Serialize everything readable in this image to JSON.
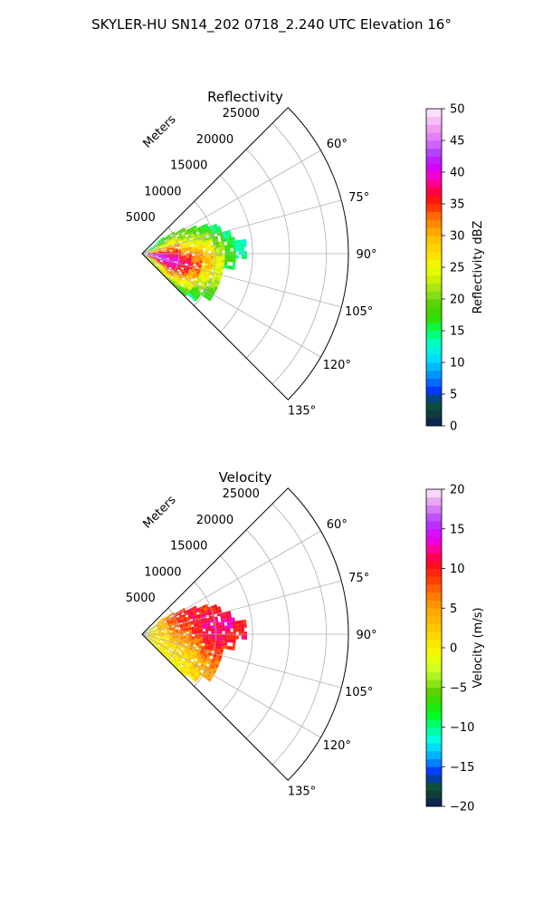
{
  "figure": {
    "title": "SKYLER-HU  SN14_202  0718_2.240 UTC Elevation 16°"
  },
  "chart_data": [
    {
      "type": "heatmap",
      "subtype": "polar-sector",
      "title": "Reflectivity",
      "radial_label": "Meters",
      "azimuth_range_deg": [
        45,
        135
      ],
      "range_max_m": 28000,
      "radial_ticks": [
        "5000",
        "10000",
        "15000",
        "20000",
        "25000"
      ],
      "radial_tick_values": [
        5000,
        10000,
        15000,
        20000,
        25000
      ],
      "angle_ticks": [
        "60°",
        "75°",
        "90°",
        "105°",
        "120°",
        "135°"
      ],
      "angle_tick_values": [
        60,
        75,
        90,
        105,
        120,
        135
      ],
      "grid": true,
      "colorbar": {
        "label": "Reflectivity dBZ",
        "min": 0,
        "max": 50,
        "ticks": [
          "0",
          "5",
          "10",
          "15",
          "20",
          "25",
          "30",
          "35",
          "40",
          "45",
          "50"
        ],
        "tick_values": [
          0,
          5,
          10,
          15,
          20,
          25,
          30,
          35,
          40,
          45,
          50
        ],
        "stops": [
          {
            "v": 0,
            "c": "#0a1a5c"
          },
          {
            "v": 2,
            "c": "#0f3d3a"
          },
          {
            "v": 4,
            "c": "#0a5a40"
          },
          {
            "v": 5,
            "c": "#0020ff"
          },
          {
            "v": 7,
            "c": "#0070ff"
          },
          {
            "v": 9,
            "c": "#00b0ff"
          },
          {
            "v": 11,
            "c": "#00e8ff"
          },
          {
            "v": 13,
            "c": "#00ffc0"
          },
          {
            "v": 15,
            "c": "#00ff60"
          },
          {
            "v": 17,
            "c": "#30e000"
          },
          {
            "v": 19,
            "c": "#50d000"
          },
          {
            "v": 21,
            "c": "#90e020"
          },
          {
            "v": 23,
            "c": "#c8f000"
          },
          {
            "v": 25,
            "c": "#f0ff00"
          },
          {
            "v": 27,
            "c": "#ffe000"
          },
          {
            "v": 29,
            "c": "#ffc800"
          },
          {
            "v": 31,
            "c": "#ffa000"
          },
          {
            "v": 33,
            "c": "#ff7000"
          },
          {
            "v": 35,
            "c": "#ff2000"
          },
          {
            "v": 37,
            "c": "#ff0040"
          },
          {
            "v": 39,
            "c": "#ff00c0"
          },
          {
            "v": 41,
            "c": "#d000ff"
          },
          {
            "v": 43,
            "c": "#b040ff"
          },
          {
            "v": 45,
            "c": "#e070ff"
          },
          {
            "v": 47,
            "c": "#f0a0f0"
          },
          {
            "v": 50,
            "c": "#fff0ff"
          }
        ]
      },
      "echo_field": {
        "rows": [
          {
            "r_m": 1500,
            "az_deg": [
              55,
              140
            ],
            "values": [
              12,
              18,
              28,
              40,
              45,
              30,
              22,
              18
            ]
          },
          {
            "r_m": 3000,
            "az_deg": [
              52,
              140
            ],
            "values": [
              14,
              20,
              30,
              38,
              42,
              36,
              24,
              17
            ]
          },
          {
            "r_m": 4500,
            "az_deg": [
              55,
              138
            ],
            "values": [
              16,
              24,
              32,
              36,
              40,
              38,
              30,
              18
            ]
          },
          {
            "r_m": 6000,
            "az_deg": [
              58,
              138
            ],
            "values": [
              18,
              22,
              28,
              34,
              38,
              34,
              26,
              16
            ]
          },
          {
            "r_m": 7500,
            "az_deg": [
              62,
              136
            ],
            "values": [
              17,
              22,
              27,
              32,
              34,
              30,
              24,
              15
            ]
          },
          {
            "r_m": 9000,
            "az_deg": [
              65,
              132
            ],
            "values": [
              16,
              20,
              26,
              30,
              28,
              24,
              20,
              14
            ]
          },
          {
            "r_m": 10500,
            "az_deg": [
              68,
              125
            ],
            "values": [
              14,
              18,
              22,
              24,
              24,
              20,
              16
            ]
          },
          {
            "r_m": 12000,
            "az_deg": [
              75,
              100
            ],
            "values": [
              14,
              16,
              18,
              15
            ]
          },
          {
            "r_m": 13500,
            "az_deg": [
              82,
              93
            ],
            "values": [
              13,
              14
            ]
          }
        ]
      }
    },
    {
      "type": "heatmap",
      "subtype": "polar-sector",
      "title": "Velocity",
      "radial_label": "Meters",
      "azimuth_range_deg": [
        45,
        135
      ],
      "range_max_m": 28000,
      "radial_ticks": [
        "5000",
        "10000",
        "15000",
        "20000",
        "25000"
      ],
      "radial_tick_values": [
        5000,
        10000,
        15000,
        20000,
        25000
      ],
      "angle_ticks": [
        "60°",
        "75°",
        "90°",
        "105°",
        "120°",
        "135°"
      ],
      "angle_tick_values": [
        60,
        75,
        90,
        105,
        120,
        135
      ],
      "grid": true,
      "colorbar": {
        "label": "Velocity (m/s)",
        "min": -20,
        "max": 20,
        "ticks": [
          "−20",
          "−15",
          "−10",
          "−5",
          "0",
          "5",
          "10",
          "15",
          "20"
        ],
        "tick_values": [
          -20,
          -15,
          -10,
          -5,
          0,
          5,
          10,
          15,
          20
        ],
        "stops": [
          {
            "v": -20,
            "c": "#0a1a5c"
          },
          {
            "v": -18.5,
            "c": "#0f3d3a"
          },
          {
            "v": -17,
            "c": "#0a5a40"
          },
          {
            "v": -16,
            "c": "#0020ff"
          },
          {
            "v": -14.5,
            "c": "#0080ff"
          },
          {
            "v": -13,
            "c": "#00d0ff"
          },
          {
            "v": -11.5,
            "c": "#00ffe0"
          },
          {
            "v": -10,
            "c": "#00ff80"
          },
          {
            "v": -8.5,
            "c": "#00ff20"
          },
          {
            "v": -7,
            "c": "#30e000"
          },
          {
            "v": -5.5,
            "c": "#60d000"
          },
          {
            "v": -4,
            "c": "#a0f020"
          },
          {
            "v": -2.5,
            "c": "#d0ff20"
          },
          {
            "v": -1,
            "c": "#f0ff00"
          },
          {
            "v": 1,
            "c": "#ffe000"
          },
          {
            "v": 3,
            "c": "#ffc000"
          },
          {
            "v": 5,
            "c": "#ffa000"
          },
          {
            "v": 7,
            "c": "#ff7000"
          },
          {
            "v": 9,
            "c": "#ff3000"
          },
          {
            "v": 11,
            "c": "#ff0030"
          },
          {
            "v": 12.5,
            "c": "#ff00a0"
          },
          {
            "v": 14,
            "c": "#e000ff"
          },
          {
            "v": 16,
            "c": "#b040ff"
          },
          {
            "v": 18,
            "c": "#e090f0"
          },
          {
            "v": 20,
            "c": "#fff0ff"
          }
        ]
      },
      "echo_field": {
        "rows": [
          {
            "r_m": 1500,
            "az_deg": [
              55,
              140
            ],
            "values": [
              -3,
              -2,
              0,
              2,
              1,
              0,
              -1,
              0
            ]
          },
          {
            "r_m": 3000,
            "az_deg": [
              52,
              140
            ],
            "values": [
              2,
              4,
              3,
              2,
              0,
              1,
              0,
              -1
            ]
          },
          {
            "r_m": 4500,
            "az_deg": [
              55,
              138
            ],
            "values": [
              6,
              8,
              7,
              5,
              3,
              1,
              0,
              0
            ]
          },
          {
            "r_m": 6000,
            "az_deg": [
              58,
              138
            ],
            "values": [
              9,
              10,
              9,
              6,
              4,
              2,
              0,
              0
            ]
          },
          {
            "r_m": 7500,
            "az_deg": [
              62,
              136
            ],
            "values": [
              10,
              11,
              10,
              8,
              5,
              2,
              1,
              0
            ]
          },
          {
            "r_m": 9000,
            "az_deg": [
              65,
              132
            ],
            "values": [
              9,
              11,
              12,
              10,
              6,
              3,
              1
            ]
          },
          {
            "r_m": 10500,
            "az_deg": [
              68,
              125
            ],
            "values": [
              10,
              12,
              11,
              9,
              6,
              4
            ]
          },
          {
            "r_m": 12000,
            "az_deg": [
              75,
              100
            ],
            "values": [
              11,
              13,
              10,
              9
            ]
          },
          {
            "r_m": 13500,
            "az_deg": [
              82,
              93
            ],
            "values": [
              10,
              11
            ]
          }
        ]
      }
    }
  ]
}
